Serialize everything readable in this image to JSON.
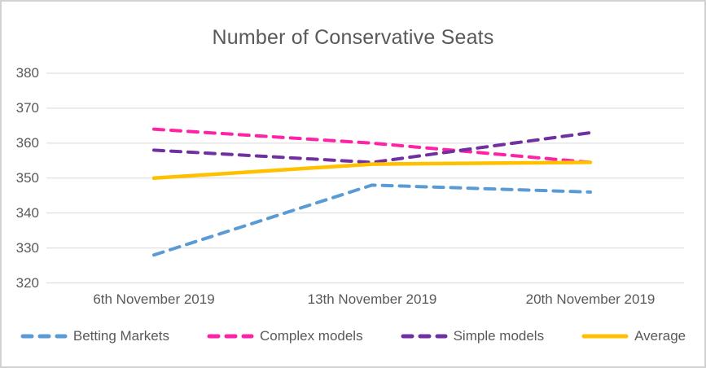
{
  "chart_data": {
    "type": "line",
    "title": "Number of Conservative Seats",
    "categories": [
      "6th November 2019",
      "13th November 2019",
      "20th November 2019"
    ],
    "series": [
      {
        "name": "Betting Markets",
        "color": "#5B9BD5",
        "line_style": "dashed",
        "values": [
          328,
          348,
          346
        ]
      },
      {
        "name": "Complex models",
        "color": "#FF22A6",
        "line_style": "dashed",
        "values": [
          364,
          360,
          354.5
        ]
      },
      {
        "name": "Simple models",
        "color": "#7030A0",
        "line_style": "dashed",
        "values": [
          358,
          354.5,
          363
        ]
      },
      {
        "name": "Average",
        "color": "#FFC000",
        "line_style": "solid",
        "values": [
          350,
          354,
          354.5
        ]
      }
    ],
    "xlabel": "",
    "ylabel": "",
    "ylim": [
      320,
      380
    ],
    "yticks": [
      380,
      370,
      360,
      350,
      340,
      330,
      320
    ],
    "grid": true,
    "legend_position": "bottom",
    "text_color": "#595959",
    "grid_color": "#d9d9d9"
  }
}
